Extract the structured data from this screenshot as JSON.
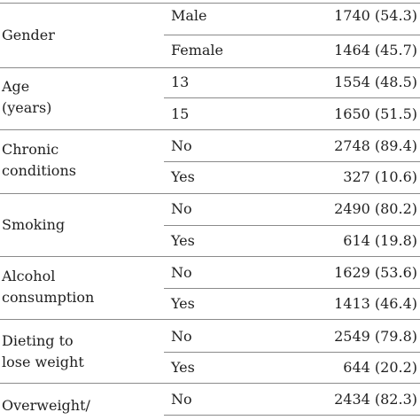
{
  "table": {
    "groups": [
      {
        "label_lines": [
          "Gender"
        ],
        "rows": [
          {
            "level": "Male",
            "value": "1740 (54.3)"
          },
          {
            "level": "Female",
            "value": "1464 (45.7)"
          }
        ]
      },
      {
        "label_lines": [
          "Age",
          "(years)"
        ],
        "rows": [
          {
            "level": "13",
            "value": "1554 (48.5)"
          },
          {
            "level": "15",
            "value": "1650 (51.5)"
          }
        ]
      },
      {
        "label_lines": [
          "Chronic",
          "conditions"
        ],
        "rows": [
          {
            "level": "No",
            "value": "2748 (89.4)"
          },
          {
            "level": "Yes",
            "value": "327 (10.6)"
          }
        ]
      },
      {
        "label_lines": [
          "Smoking"
        ],
        "rows": [
          {
            "level": "No",
            "value": "2490 (80.2)"
          },
          {
            "level": "Yes",
            "value": "614 (19.8)"
          }
        ]
      },
      {
        "label_lines": [
          "Alcohol",
          "consumption"
        ],
        "rows": [
          {
            "level": "No",
            "value": "1629 (53.6)"
          },
          {
            "level": "Yes",
            "value": "1413 (46.4)"
          }
        ]
      },
      {
        "label_lines": [
          "Dieting to",
          "lose weight"
        ],
        "rows": [
          {
            "level": "No",
            "value": "2549 (79.8)"
          },
          {
            "level": "Yes",
            "value": "644 (20.2)"
          }
        ]
      },
      {
        "label_lines": [
          "Overweight/"
        ],
        "rows": [
          {
            "level": "No",
            "value": "2434 (82.3)"
          }
        ]
      }
    ]
  }
}
